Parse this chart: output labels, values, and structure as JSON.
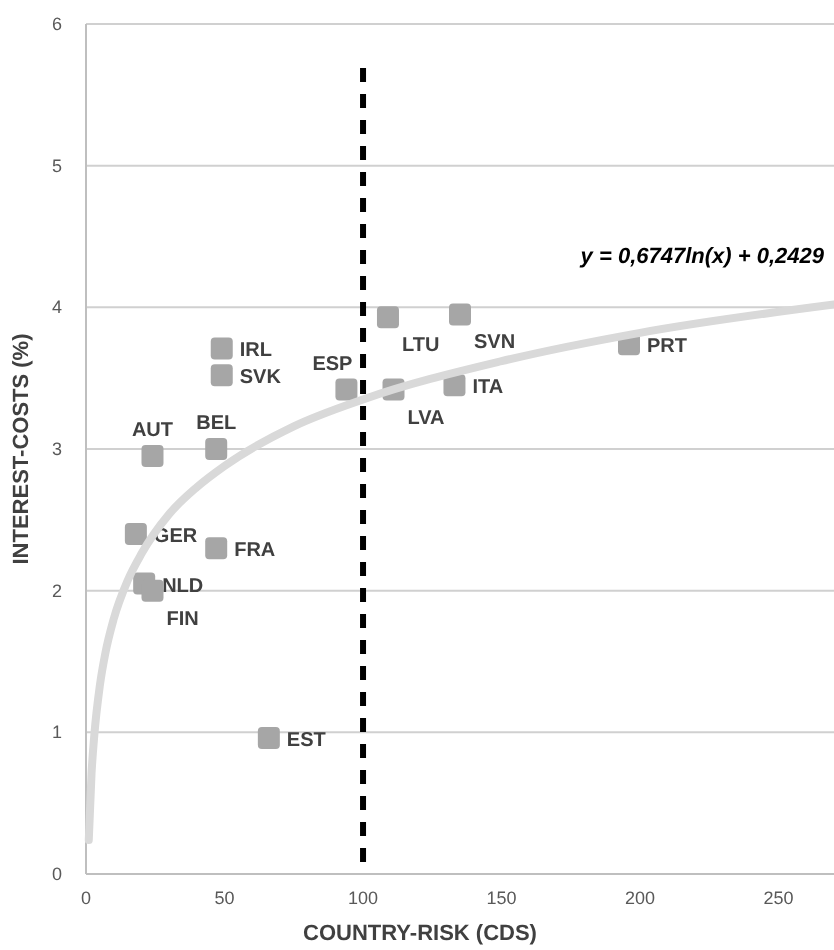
{
  "chart_data": {
    "type": "scatter",
    "xlabel": "COUNTRY-RISK (CDS)",
    "ylabel": "INTEREST-COSTS (%)",
    "xlim": [
      0,
      270
    ],
    "ylim": [
      0,
      6
    ],
    "xticks": [
      0,
      50,
      100,
      150,
      200,
      250
    ],
    "yticks": [
      0,
      1,
      2,
      3,
      4,
      5,
      6
    ],
    "grid": "y",
    "marker": "square",
    "series": [
      {
        "name": "IRL",
        "color": "#a6a6a6",
        "x": [
          49
        ],
        "values": [
          3.71
        ]
      },
      {
        "name": "SVK",
        "color": "#a6a6a6",
        "x": [
          49
        ],
        "values": [
          3.52
        ]
      },
      {
        "name": "AUT",
        "color": "#a6a6a6",
        "x": [
          24
        ],
        "values": [
          2.95
        ]
      },
      {
        "name": "BEL",
        "color": "#a6a6a6",
        "x": [
          47
        ],
        "values": [
          3.0
        ]
      },
      {
        "name": "GER",
        "color": "#a6a6a6",
        "x": [
          18
        ],
        "values": [
          2.4
        ]
      },
      {
        "name": "FRA",
        "color": "#a6a6a6",
        "x": [
          47
        ],
        "values": [
          2.3
        ]
      },
      {
        "name": "NLD",
        "color": "#a6a6a6",
        "x": [
          21
        ],
        "values": [
          2.05
        ]
      },
      {
        "name": "FIN",
        "color": "#a6a6a6",
        "x": [
          24
        ],
        "values": [
          2.0
        ]
      },
      {
        "name": "EST",
        "color": "#a6a6a6",
        "x": [
          66
        ],
        "values": [
          0.96
        ]
      },
      {
        "name": "ESP",
        "color": "#a6a6a6",
        "x": [
          94
        ],
        "values": [
          3.42
        ]
      },
      {
        "name": "LTU",
        "color": "#a6a6a6",
        "x": [
          109
        ],
        "values": [
          3.93
        ]
      },
      {
        "name": "SVN",
        "color": "#a6a6a6",
        "x": [
          135
        ],
        "values": [
          3.95
        ]
      },
      {
        "name": "LVA",
        "color": "#a6a6a6",
        "x": [
          111
        ],
        "values": [
          3.42
        ]
      },
      {
        "name": "ITA",
        "color": "#a6a6a6",
        "x": [
          133
        ],
        "values": [
          3.45
        ]
      },
      {
        "name": "PRT",
        "color": "#a6a6a6",
        "x": [
          196
        ],
        "values": [
          3.74
        ]
      },
      {
        "type": "line",
        "color": "#d9d9d9",
        "marker": "none",
        "x": [
          1,
          2,
          3,
          5,
          7,
          10,
          15,
          20,
          30,
          40,
          50,
          75,
          100,
          150,
          200,
          270
        ],
        "values": [
          0.24,
          0.71,
          0.98,
          1.33,
          1.56,
          1.8,
          2.07,
          2.26,
          2.54,
          2.73,
          2.88,
          3.16,
          3.35,
          3.62,
          3.82,
          4.02
        ]
      }
    ],
    "ref_lines": [
      {
        "axis": "x",
        "value": 100,
        "color": "#000000",
        "line_style": "dashed"
      }
    ],
    "annotations": [
      "y = 0,6747ln(x) + 0,2429"
    ]
  }
}
